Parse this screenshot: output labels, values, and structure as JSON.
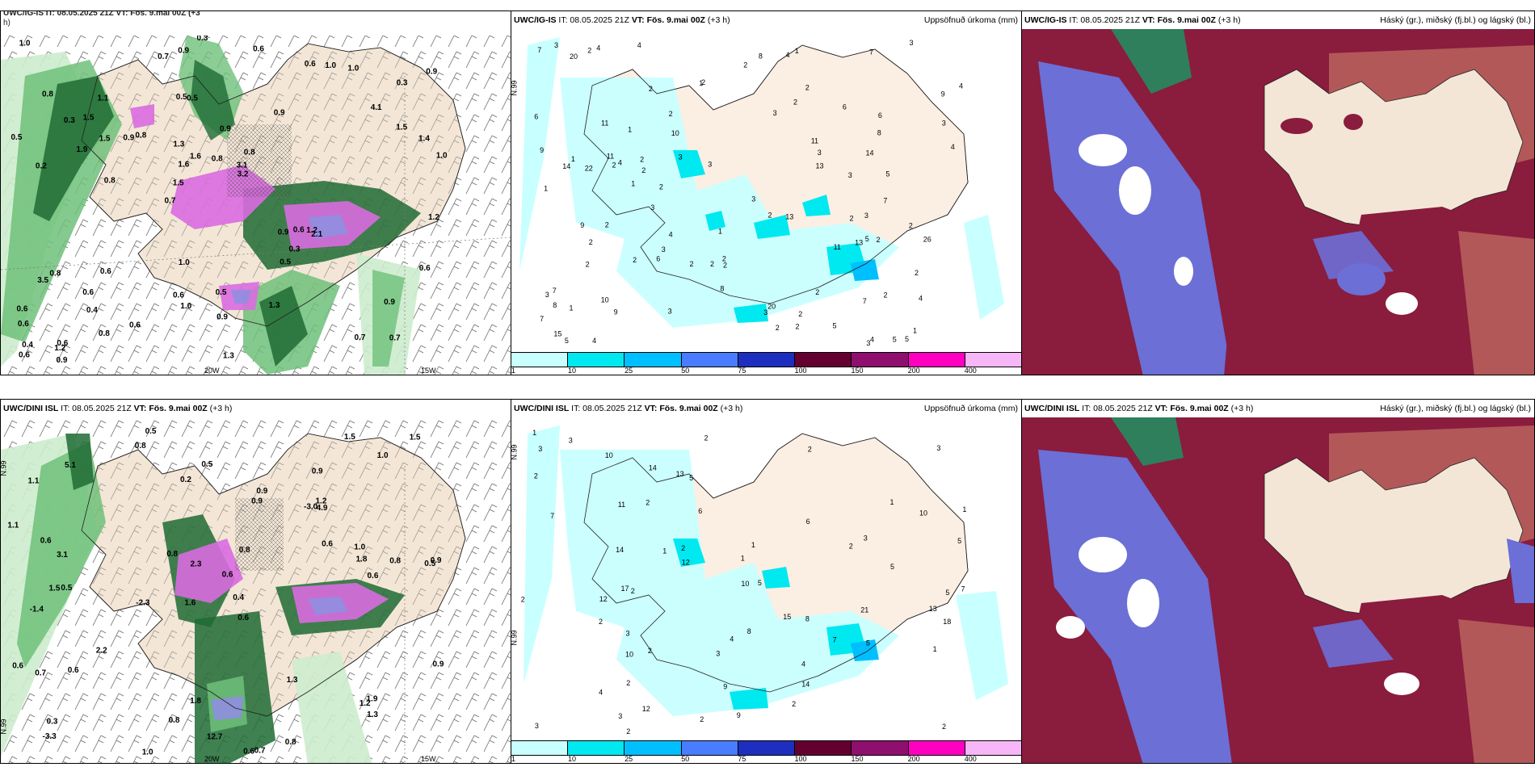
{
  "panels": [
    {
      "id": "igis-wind",
      "model": "",
      "it": "",
      "vt": "",
      "lead": "",
      "title_fragment_top": "UWC/IG-IS IT: 08.05.2025 21Z VT: Fös. 9.mai 00Z (+3",
      "title_fragment_wrap": "h)",
      "right_title": "",
      "grid_labels": [
        "20W",
        "15W"
      ],
      "values": [
        "0.7",
        "0.2",
        "0.3",
        "0.7",
        "0.9",
        "0.6",
        "0.5",
        "0.9",
        "0.8",
        "0.8",
        "0.6",
        "0.4",
        "0.5",
        "0.8",
        "2.1",
        "0.8",
        "0.9",
        "1.0",
        "0.9",
        "1.5",
        "1.5",
        "0.6",
        "1.6",
        "1.1",
        "0.6",
        "0.6",
        "0.7",
        "0.9",
        "1.2",
        "1.3",
        "0.9",
        "1.9",
        "0.5",
        "0.8",
        "1.4",
        "3.1",
        "0.4",
        "1.0",
        "3.2",
        "3.5",
        "4.1",
        "0.9",
        "0.3",
        "1.3",
        "0.6",
        "0.9",
        "0.6",
        "0.5",
        "1.0",
        "0.3",
        "0.8",
        "0.5",
        "1.5",
        "1.0",
        "1.2",
        "0.6",
        "0.7",
        "1.6",
        "0.6",
        "1.0",
        "0.6",
        "0.6",
        "1.5",
        "0.6",
        "1.0",
        "0.3",
        "1.2",
        "1.3",
        "0.9",
        "0.8"
      ]
    },
    {
      "id": "igis-precip",
      "model": "UWC/IG-IS",
      "it": "IT: 08.05.2025 21Z",
      "vt": "VT: Fös. 9.mai 00Z",
      "lead": "(+3 h)",
      "right_title": "Uppsöfnuð úrkoma (mm)",
      "grid_labels": [
        "N.99"
      ],
      "values": [
        "1",
        "2",
        "2",
        "3",
        "5",
        "2",
        "2",
        "3",
        "6",
        "3",
        "5",
        "8",
        "7",
        "4",
        "2",
        "2",
        "3",
        "4",
        "9",
        "3",
        "5",
        "4",
        "2",
        "2",
        "2",
        "13",
        "3",
        "7",
        "6",
        "3",
        "3",
        "2",
        "1",
        "2",
        "6",
        "9",
        "1",
        "4",
        "2",
        "3",
        "1",
        "1",
        "2",
        "5",
        "2",
        "8",
        "2",
        "1",
        "4",
        "2",
        "2",
        "14",
        "13",
        "7",
        "3",
        "11",
        "9",
        "20",
        "2",
        "10",
        "4",
        "2",
        "6",
        "2",
        "7",
        "14",
        "3",
        "3",
        "11",
        "4",
        "9",
        "11",
        "8",
        "8",
        "4",
        "20",
        "26",
        "22",
        "4",
        "3",
        "2",
        "15",
        "13",
        "2",
        "2",
        "4",
        "2",
        "2",
        "10",
        "2",
        "1",
        "2",
        "1",
        "3",
        "2",
        "5",
        "7",
        "7",
        "11",
        "3",
        "1",
        "2",
        "5",
        "3"
      ],
      "colorbar": {
        "labels": [
          "1",
          "10",
          "25",
          "50",
          "75",
          "100",
          "150",
          "200",
          "400"
        ],
        "colors": [
          "#c8ffff",
          "#00e8f0",
          "#00bfff",
          "#4a7cff",
          "#1e2fbf",
          "#640030",
          "#8e0f6e",
          "#ff00c0",
          "#f7b6f7"
        ]
      }
    },
    {
      "id": "igis-cloud",
      "model": "UWC/IG-IS",
      "it": "IT: 08.05.2025 21Z",
      "vt": "VT: Fös. 9.mai 00Z",
      "lead": "(+3 h)",
      "right_title": "Háský (gr.), miðský (fj.bl.) og lágský (bl.)"
    },
    {
      "id": "dini-wind",
      "model": "UWC/DINI ISL",
      "it": "IT: 08.05.2025 21Z",
      "vt": "VT: Fös. 9.mai 00Z",
      "lead": "(+3 h)",
      "right_title": "",
      "grid_labels": [
        "20W",
        "15W",
        "N.99",
        "N.99"
      ],
      "values": [
        "0.5",
        "0.9",
        "0.5",
        "1.6",
        "0.6",
        "0.5",
        "1.1",
        "-3.0",
        "-1.4",
        "0.9",
        "0.6",
        "-3.3",
        "0.8",
        "-2.3",
        "0.6",
        "0.7",
        "1.8",
        "1.5",
        "0.6",
        "2.2",
        "3.1",
        "1.5",
        "0.9",
        "0.8",
        "0.6",
        "0.6",
        "2.3",
        "1.8",
        "1.9",
        "0.7",
        "1.2",
        "0.9",
        "0.6",
        "0.8",
        "1.3",
        "0.9",
        "1.0",
        "0.8",
        "1.5",
        "0.5",
        "0.3",
        "1.0",
        "0.8",
        "5.1",
        "12.7",
        "4.9",
        "1.3",
        "1.2",
        "1.1",
        "0.4",
        "0.2",
        "0.6",
        "0.8",
        "1.0"
      ]
    },
    {
      "id": "dini-precip",
      "model": "UWC/DINI ISL",
      "it": "IT: 08.05.2025 21Z",
      "vt": "VT: Fös. 9.mai 00Z",
      "lead": "(+3 h)",
      "right_title": "Uppsöfnuð úrkoma (mm)",
      "grid_labels": [
        "N.99",
        "N.99"
      ],
      "values": [
        "3",
        "1",
        "2",
        "3",
        "1",
        "4",
        "5",
        "2",
        "3",
        "7",
        "10",
        "5",
        "2",
        "2",
        "4",
        "1",
        "3",
        "4",
        "2",
        "2",
        "5",
        "9",
        "12",
        "17",
        "12",
        "8",
        "3",
        "5",
        "2",
        "13",
        "15",
        "14",
        "10",
        "18",
        "10",
        "14",
        "10",
        "12",
        "14",
        "6",
        "11",
        "9",
        "8",
        "6",
        "3",
        "1",
        "2",
        "5",
        "2",
        "7",
        "7",
        "2",
        "3",
        "13",
        "21",
        "2",
        "2",
        "1",
        "1",
        "2",
        "3",
        "5",
        "2",
        "1",
        "2"
      ],
      "colorbar": {
        "labels": [
          "1",
          "10",
          "25",
          "50",
          "75",
          "100",
          "150",
          "200",
          "400"
        ],
        "colors": [
          "#c8ffff",
          "#00e8f0",
          "#00bfff",
          "#4a7cff",
          "#1e2fbf",
          "#640030",
          "#8e0f6e",
          "#ff00c0",
          "#f7b6f7"
        ]
      }
    },
    {
      "id": "dini-cloud",
      "model": "UWC/DINI ISL",
      "it": "IT: 08.05.2025 21Z",
      "vt": "VT: Fös. 9.mai 00Z",
      "lead": "(+3 h)",
      "right_title": "Háský (gr.), miðský (fj.bl.) og lágský (bl.)"
    }
  ],
  "colors": {
    "land": "#f3e6d6",
    "sea": "#ffffff",
    "precip_light": "#cdeccd",
    "precip_mid": "#6ec07a",
    "precip_heavy": "#1e6b34",
    "precip_magenta": "#d96be0",
    "precip_lavender": "#8f8ee0",
    "low_cloud": "#6b6fd6",
    "mid_cloud": "#8a1c3e",
    "high_cloud": "#2f7f5d",
    "light_blue": "#3fb6ff",
    "cloud_salmon": "#b25858"
  }
}
